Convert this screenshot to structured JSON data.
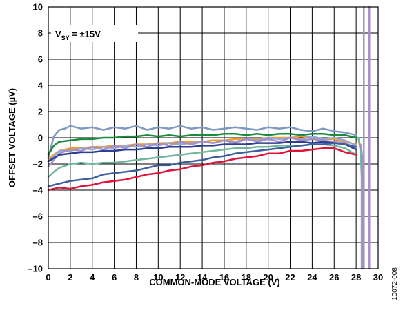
{
  "chart_data": {
    "type": "line",
    "title": "",
    "xlabel": "COMMON-MODE VOLTAGE (V)",
    "ylabel": "OFFSET VOLTAGE (µV)",
    "xlim": [
      0,
      30
    ],
    "ylim": [
      -10,
      10
    ],
    "xticks": [
      "0",
      "2",
      "4",
      "6",
      "8",
      "10",
      "12",
      "14",
      "16",
      "18",
      "20",
      "22",
      "24",
      "26",
      "28",
      "30"
    ],
    "yticks": [
      "10",
      "8",
      "6",
      "4",
      "2",
      "0",
      "–2",
      "–4",
      "–6",
      "–8",
      "–10"
    ],
    "grid": true,
    "annotation": {
      "prefix": "V",
      "sub": "SY",
      "suffix": " = ±15V"
    },
    "figure_id": "10072-008",
    "series": [
      {
        "color": "#7f98c2",
        "x": [
          0,
          0.5,
          1,
          1.5,
          2,
          3,
          4,
          5,
          6,
          7,
          8,
          9,
          10,
          11,
          12,
          13,
          14,
          15,
          16,
          17,
          18,
          19,
          20,
          21,
          22,
          23,
          24,
          25,
          26,
          27,
          28
        ],
        "y": [
          -1.5,
          0.1,
          0.6,
          0.7,
          0.9,
          0.7,
          0.8,
          0.6,
          0.8,
          0.7,
          0.9,
          0.6,
          0.8,
          0.7,
          0.9,
          0.7,
          0.8,
          0.6,
          0.7,
          0.8,
          0.7,
          0.6,
          0.8,
          0.7,
          0.8,
          0.6,
          0.5,
          0.7,
          0.5,
          0.4,
          0.2
        ]
      },
      {
        "color": "#1a8a3c",
        "x": [
          0,
          0.5,
          1,
          2,
          3,
          4,
          5,
          6,
          7,
          8,
          9,
          10,
          11,
          12,
          13,
          14,
          15,
          16,
          17,
          18,
          19,
          20,
          21,
          22,
          23,
          24,
          25,
          26,
          27,
          28
        ],
        "y": [
          -1.3,
          -0.6,
          -0.3,
          -0.2,
          -0.1,
          -0.1,
          0.0,
          0.0,
          0.1,
          0.1,
          0.2,
          0.1,
          0.2,
          0.1,
          0.2,
          0.2,
          0.2,
          0.3,
          0.3,
          0.2,
          0.3,
          0.2,
          0.3,
          0.3,
          0.2,
          0.3,
          0.3,
          0.2,
          0.2,
          0.0
        ]
      },
      {
        "color": "#f29c2c",
        "x": [
          0,
          1,
          2,
          3,
          4,
          5,
          6,
          7,
          8,
          9,
          10,
          11,
          12,
          13,
          14,
          15,
          16,
          17,
          18,
          19,
          20,
          21,
          22,
          23,
          24,
          25,
          26,
          27,
          28
        ],
        "y": [
          -1.6,
          -1.0,
          -0.8,
          -0.8,
          -0.7,
          -0.7,
          -0.6,
          -0.6,
          -0.5,
          -0.5,
          -0.4,
          -0.4,
          -0.3,
          -0.3,
          -0.3,
          -0.2,
          -0.2,
          -0.1,
          -0.1,
          -0.1,
          0.0,
          0.0,
          0.0,
          0.1,
          0.0,
          -0.1,
          -0.1,
          -0.3,
          -0.5
        ]
      },
      {
        "color": "#93a8d6",
        "x": [
          0,
          1,
          2,
          3,
          4,
          5,
          6,
          7,
          8,
          9,
          10,
          11,
          12,
          13,
          14,
          15,
          16,
          17,
          18,
          19,
          20,
          21,
          22,
          23,
          24,
          25,
          26,
          27,
          28
        ],
        "y": [
          -1.8,
          -1.0,
          -1.0,
          -0.8,
          -0.9,
          -0.7,
          -0.8,
          -0.6,
          -0.7,
          -0.5,
          -0.6,
          -0.4,
          -0.5,
          -0.4,
          -0.3,
          -0.4,
          -0.2,
          -0.3,
          -0.1,
          -0.2,
          0.0,
          -0.1,
          0.0,
          -0.1,
          0.1,
          -0.1,
          0.0,
          -0.2,
          -0.6
        ]
      },
      {
        "color": "#a58fc4",
        "x": [
          0,
          1,
          2,
          3,
          4,
          5,
          6,
          7,
          8,
          9,
          10,
          11,
          12,
          13,
          14,
          15,
          16,
          17,
          18,
          19,
          20,
          21,
          22,
          23,
          24,
          25,
          26,
          27,
          28
        ],
        "y": [
          -2.2,
          -1.2,
          -0.9,
          -1.0,
          -0.7,
          -0.9,
          -0.6,
          -0.8,
          -0.5,
          -0.7,
          -0.4,
          -0.6,
          -0.3,
          -0.5,
          -0.3,
          -0.4,
          -0.2,
          -0.4,
          -0.1,
          -0.3,
          -0.1,
          -0.3,
          0.0,
          -0.2,
          -0.1,
          -0.2,
          -0.3,
          -0.4,
          -0.8
        ]
      },
      {
        "color": "#2e3f8f",
        "x": [
          0,
          1,
          2,
          3,
          4,
          5,
          6,
          7,
          8,
          9,
          10,
          11,
          12,
          13,
          14,
          15,
          16,
          17,
          18,
          19,
          20,
          21,
          22,
          23,
          24,
          25,
          26,
          27,
          28
        ],
        "y": [
          -1.8,
          -1.3,
          -1.2,
          -1.1,
          -1.1,
          -1.0,
          -1.0,
          -0.9,
          -0.9,
          -0.8,
          -0.8,
          -0.7,
          -0.7,
          -0.7,
          -0.6,
          -0.6,
          -0.5,
          -0.5,
          -0.5,
          -0.4,
          -0.4,
          -0.4,
          -0.3,
          -0.3,
          -0.4,
          -0.3,
          -0.4,
          -0.5,
          -0.9
        ]
      },
      {
        "color": "#6fb89c",
        "x": [
          0,
          0.5,
          1,
          2,
          3,
          4,
          5,
          6,
          7,
          8,
          9,
          10,
          11,
          12,
          13,
          14,
          15,
          16,
          17,
          18,
          19,
          20,
          21,
          22,
          23,
          24,
          25,
          26,
          27,
          28
        ],
        "y": [
          -3.0,
          -2.6,
          -2.3,
          -2.0,
          -1.9,
          -2.0,
          -1.9,
          -1.9,
          -1.8,
          -1.7,
          -1.6,
          -1.5,
          -1.4,
          -1.3,
          -1.2,
          -1.1,
          -1.0,
          -0.9,
          -0.8,
          -0.8,
          -0.7,
          -0.7,
          -0.6,
          -0.6,
          -0.6,
          -0.5,
          -0.5,
          -0.6,
          -0.8,
          -1.3
        ]
      },
      {
        "color": "#3e5f9e",
        "x": [
          0,
          1,
          2,
          3,
          4,
          5,
          6,
          7,
          8,
          9,
          10,
          11,
          12,
          13,
          14,
          15,
          16,
          17,
          18,
          19,
          20,
          21,
          22,
          23,
          24,
          25,
          26,
          27,
          28
        ],
        "y": [
          -3.7,
          -3.5,
          -3.3,
          -3.2,
          -3.1,
          -2.8,
          -2.7,
          -2.6,
          -2.5,
          -2.3,
          -2.1,
          -2.1,
          -1.9,
          -1.8,
          -1.7,
          -1.5,
          -1.4,
          -1.2,
          -1.1,
          -1.0,
          -0.9,
          -0.8,
          -0.7,
          -0.6,
          -0.5,
          -0.5,
          -0.4,
          -0.5,
          -0.7
        ]
      },
      {
        "color": "#e0133c",
        "x": [
          0,
          1,
          2,
          3,
          4,
          5,
          6,
          7,
          8,
          9,
          10,
          11,
          12,
          13,
          14,
          15,
          16,
          17,
          18,
          19,
          20,
          21,
          22,
          23,
          24,
          25,
          26,
          27,
          28
        ],
        "y": [
          -4.0,
          -3.8,
          -3.9,
          -3.7,
          -3.6,
          -3.4,
          -3.3,
          -3.2,
          -3.0,
          -2.8,
          -2.7,
          -2.5,
          -2.4,
          -2.2,
          -2.1,
          -1.9,
          -1.8,
          -1.6,
          -1.5,
          -1.4,
          -1.2,
          -1.2,
          -1.0,
          -1.0,
          -0.9,
          -0.8,
          -0.8,
          -1.1,
          -1.3
        ]
      },
      {
        "color": "#6fb89c",
        "x": [
          28.2,
          28.4,
          28.5,
          28.5
        ],
        "y": [
          0.0,
          -1.0,
          -3.0,
          -10
        ]
      },
      {
        "color": "#a58fc4",
        "x": [
          28.4,
          28.5,
          28.6,
          28.6
        ],
        "y": [
          -0.5,
          -1.0,
          -2.0,
          -10
        ]
      },
      {
        "color": "#a58fc4",
        "x": [
          28.7,
          28.7
        ],
        "y": [
          10,
          -10
        ]
      },
      {
        "color": "#a58fc4",
        "x": [
          29.2,
          29.2
        ],
        "y": [
          10,
          -10
        ]
      }
    ]
  }
}
